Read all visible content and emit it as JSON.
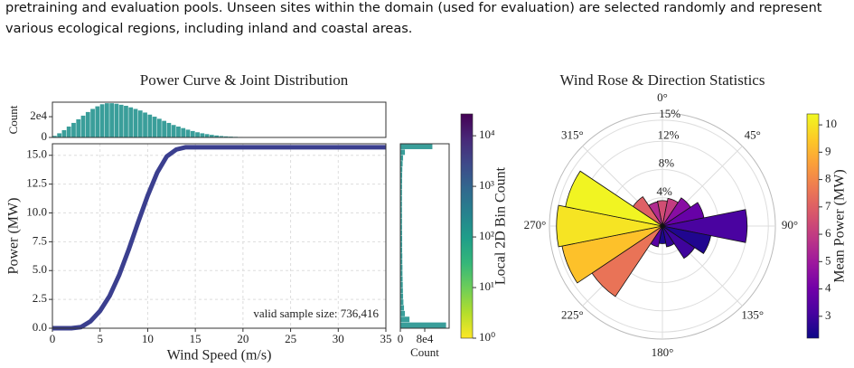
{
  "paragraph": {
    "lines": [
      "pretraining and evaluation pools. Unseen sites within the domain (used for evaluation) are selected randomly and represent",
      "various ecological regions, including inland and coastal areas."
    ]
  },
  "chart_data": [
    {
      "type": "line",
      "title": "Power Curve & Joint Distribution",
      "x_label": "Wind Speed (m/s)",
      "y_label": "Power (MW)",
      "x": [
        0,
        1,
        2,
        3,
        4,
        5,
        6,
        7,
        8,
        9,
        10,
        11,
        12,
        13,
        14,
        15,
        16,
        17,
        18,
        19,
        20,
        21,
        22,
        23,
        24,
        25,
        26,
        27,
        28,
        29,
        30,
        31,
        32,
        33,
        34,
        35
      ],
      "series": [
        {
          "color": "#3b3f8f",
          "values": [
            0,
            0,
            0,
            0.1,
            0.6,
            1.5,
            2.8,
            4.6,
            6.8,
            9.2,
            11.5,
            13.5,
            14.9,
            15.5,
            15.7,
            15.7,
            15.7,
            15.7,
            15.7,
            15.7,
            15.7,
            15.7,
            15.7,
            15.7,
            15.7,
            15.7,
            15.7,
            15.7,
            15.7,
            15.7,
            15.7,
            15.7,
            15.7,
            15.7,
            15.7,
            15.7
          ]
        }
      ],
      "xlim": [
        0,
        35
      ],
      "ylim": [
        0,
        16
      ],
      "xticks": [
        0,
        5,
        10,
        15,
        20,
        25,
        30,
        35
      ],
      "yticks": [
        {
          "value": 0,
          "label": "0.0"
        },
        {
          "value": 2.5,
          "label": "2.5"
        },
        {
          "value": 5,
          "label": "5.0"
        },
        {
          "value": 7.5,
          "label": "7.5"
        },
        {
          "value": 10,
          "label": "10.0"
        },
        {
          "value": 12.5,
          "label": "12.5"
        },
        {
          "value": 15,
          "label": "15.0"
        }
      ],
      "grid": true,
      "annotation": "valid sample size: 736,416"
    },
    {
      "type": "histogram",
      "y_label": "Count",
      "color": "#3a9e9a",
      "xlim": [
        0,
        35
      ],
      "ylim": [
        0,
        34000
      ],
      "yticks": [
        0,
        {
          "value": 20000,
          "label": "2e4"
        }
      ],
      "bins": [
        0,
        0.5,
        1,
        1.5,
        2,
        2.5,
        3,
        3.5,
        4,
        4.5,
        5,
        5.5,
        6,
        6.5,
        7,
        7.5,
        8,
        8.5,
        9,
        9.5,
        10,
        10.5,
        11,
        11.5,
        12,
        12.5,
        13,
        13.5,
        14,
        14.5,
        15,
        15.5,
        16,
        16.5,
        17,
        17.5,
        18,
        18.5,
        19,
        19.5,
        20,
        20.5,
        21,
        21.5,
        22,
        22.5,
        23,
        23.5,
        24,
        24.5,
        25
      ],
      "values": [
        1500,
        4000,
        7000,
        10500,
        14000,
        17500,
        21000,
        24500,
        27500,
        30000,
        32000,
        33000,
        33000,
        32500,
        31500,
        30500,
        29000,
        27500,
        26000,
        24000,
        22000,
        20000,
        18000,
        16000,
        14000,
        12000,
        10500,
        9000,
        7500,
        6200,
        5000,
        4000,
        3200,
        2500,
        1900,
        1400,
        1050,
        800,
        600,
        450,
        330,
        240,
        170,
        120,
        90,
        65,
        45,
        30,
        20,
        15
      ]
    },
    {
      "type": "histogram",
      "orientation": "horizontal",
      "x_label": "Count",
      "color": "#3a9e9a",
      "xlim": [
        0,
        160000
      ],
      "ylim": [
        0,
        16
      ],
      "xticks": [
        0,
        {
          "value": 80000,
          "label": "8e4"
        }
      ],
      "bins": [
        0,
        0.5,
        1,
        1.5,
        2,
        2.5,
        3,
        3.5,
        4,
        4.5,
        5,
        5.5,
        6,
        6.5,
        7,
        7.5,
        8,
        8.5,
        9,
        9.5,
        10,
        10.5,
        11,
        11.5,
        12,
        12.5,
        13,
        13.5,
        14,
        14.5,
        15,
        15.5,
        16
      ],
      "values": [
        150000,
        30000,
        15000,
        12000,
        10000,
        9000,
        8500,
        8000,
        7500,
        7000,
        7000,
        6500,
        6500,
        6000,
        6000,
        6000,
        5800,
        5600,
        5500,
        5500,
        5400,
        5400,
        5400,
        5500,
        5600,
        5800,
        6000,
        6500,
        7500,
        9000,
        15000,
        105000
      ]
    },
    {
      "type": "colorbar",
      "label": "Local 2D Bin Count",
      "colormap": "viridis_r",
      "log": true,
      "clim": [
        1,
        27000
      ],
      "ticks": [
        {
          "value": 1,
          "label": "10⁰"
        },
        {
          "value": 10,
          "label": "10¹"
        },
        {
          "value": 100,
          "label": "10²"
        },
        {
          "value": 1000,
          "label": "10³"
        },
        {
          "value": 10000,
          "label": "10⁴"
        }
      ]
    },
    {
      "type": "polar_bar",
      "title": "Wind Rose & Direction Statistics",
      "colormap": "plasma",
      "x": [
        0,
        22.5,
        45,
        67.5,
        90,
        112.5,
        135,
        157.5,
        180,
        202.5,
        225,
        247.5,
        270,
        292.5,
        315,
        337.5
      ],
      "values": [
        3.6,
        4,
        4.8,
        6,
        12,
        7,
        5.5,
        3,
        2.5,
        3,
        12,
        14.5,
        15,
        14,
        5,
        3.5
      ],
      "mean_power": [
        6.5,
        6,
        4.5,
        3.8,
        3.2,
        2.5,
        3,
        2.8,
        2.4,
        3.5,
        7.5,
        9.3,
        10,
        10.3,
        7,
        5.5
      ],
      "rlim": [
        0,
        16
      ],
      "rticks": [
        {
          "value": 4,
          "label": "4%"
        },
        {
          "value": 8,
          "label": "8%"
        },
        {
          "value": 12,
          "label": "12%"
        },
        {
          "value": 15,
          "label": "15%"
        }
      ],
      "thetaticks": [
        {
          "value": 0,
          "label": "0°"
        },
        {
          "value": 45,
          "label": "45°"
        },
        {
          "value": 90,
          "label": "90°"
        },
        {
          "value": 135,
          "label": "135°"
        },
        {
          "value": 180,
          "label": "180°"
        },
        {
          "value": 225,
          "label": "225°"
        },
        {
          "value": 270,
          "label": "270°"
        },
        {
          "value": 315,
          "label": "315°"
        }
      ]
    },
    {
      "type": "colorbar",
      "label": "Mean Power (MW)",
      "colormap": "plasma",
      "log": false,
      "clim": [
        2.2,
        10.4
      ],
      "ticks": [
        3,
        4,
        5,
        6,
        7,
        8,
        9,
        10
      ]
    }
  ]
}
